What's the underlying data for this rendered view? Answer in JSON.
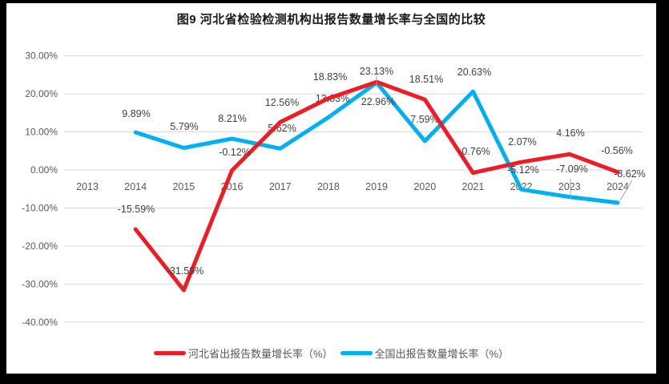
{
  "window": {
    "background_color": "#000000",
    "chart_background_color": "#ffffff"
  },
  "chart_style": {
    "grid_color": "#d9d9d9",
    "axis_text_color": "#595959",
    "data_label_color": "#3f3f3f",
    "leader_line_color": "#a6a6a6"
  },
  "chart_data": {
    "type": "line",
    "title": "图9 河北省检验检测机构出报告数量增长率与全国的比较",
    "categories": [
      "2013",
      "2014",
      "2015",
      "2016",
      "2017",
      "2018",
      "2019",
      "2020",
      "2021",
      "2022",
      "2023",
      "2024"
    ],
    "series": [
      {
        "name": "河北省出报告数量增长率（%）",
        "color": "#ee1c23",
        "values": [
          null,
          -15.59,
          -31.59,
          -0.12,
          12.56,
          18.83,
          23.13,
          18.51,
          -0.76,
          2.07,
          4.16,
          -0.56
        ],
        "labels": [
          "",
          "-15.59%",
          "-31.59%",
          "-0.12%",
          "12.56%",
          "18.83%",
          "23.13%",
          "18.51%",
          "-0.76%",
          "2.07%",
          "4.16%",
          "-0.56%"
        ]
      },
      {
        "name": "全国出报告数量增长率（%）",
        "color": "#00b0f0",
        "values": [
          null,
          9.89,
          5.79,
          8.21,
          5.62,
          13.83,
          22.96,
          7.59,
          20.63,
          -5.12,
          -7.09,
          -8.62
        ],
        "labels": [
          "",
          "9.89%",
          "5.79%",
          "8.21%",
          "5.62%",
          "13.83%",
          "22.96%",
          "7.59%",
          "20.63%",
          "-5.12%",
          "-7.09%",
          "-8.62%"
        ]
      }
    ],
    "y_ticks": [
      "30.00%",
      "20.00%",
      "10.00%",
      "0.00%",
      "-10.00%",
      "-20.00%",
      "-30.00%",
      "-40.00%"
    ],
    "ylim": [
      -40,
      30
    ],
    "grid": true,
    "legend_position": "bottom"
  }
}
